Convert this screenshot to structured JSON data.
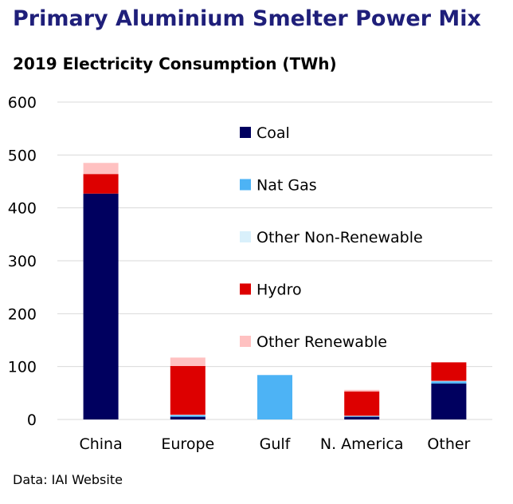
{
  "header": {
    "title": "Primary Aluminium Smelter Power Mix",
    "subtitle": "2019 Electricity Consumption (TWh)"
  },
  "footer": {
    "source": "Data: IAI Website"
  },
  "chart_data": {
    "type": "bar",
    "stacked": true,
    "title": "Primary Aluminium Smelter Power Mix",
    "subtitle": "2019 Electricity Consumption (TWh)",
    "xlabel": "",
    "ylabel": "",
    "ylim": [
      0,
      600
    ],
    "yticks": [
      0,
      100,
      200,
      300,
      400,
      500,
      600
    ],
    "grid": true,
    "legend_position": "inside-top-right",
    "categories": [
      "China",
      "Europe",
      "Gulf",
      "N. America",
      "Other"
    ],
    "series": [
      {
        "name": "Coal",
        "color": "#00005f",
        "values": [
          427,
          5,
          0,
          5,
          68
        ]
      },
      {
        "name": "Nat Gas",
        "color": "#4db3f5",
        "values": [
          0,
          3,
          84,
          1,
          4
        ]
      },
      {
        "name": "Other Non-Renewable",
        "color": "#d9f0fb",
        "values": [
          0,
          1,
          0,
          1,
          1
        ]
      },
      {
        "name": "Hydro",
        "color": "#dd0000",
        "values": [
          37,
          92,
          0,
          46,
          35
        ]
      },
      {
        "name": "Other Renewable",
        "color": "#ffc1c1",
        "values": [
          21,
          16,
          0,
          3,
          0
        ]
      }
    ]
  }
}
